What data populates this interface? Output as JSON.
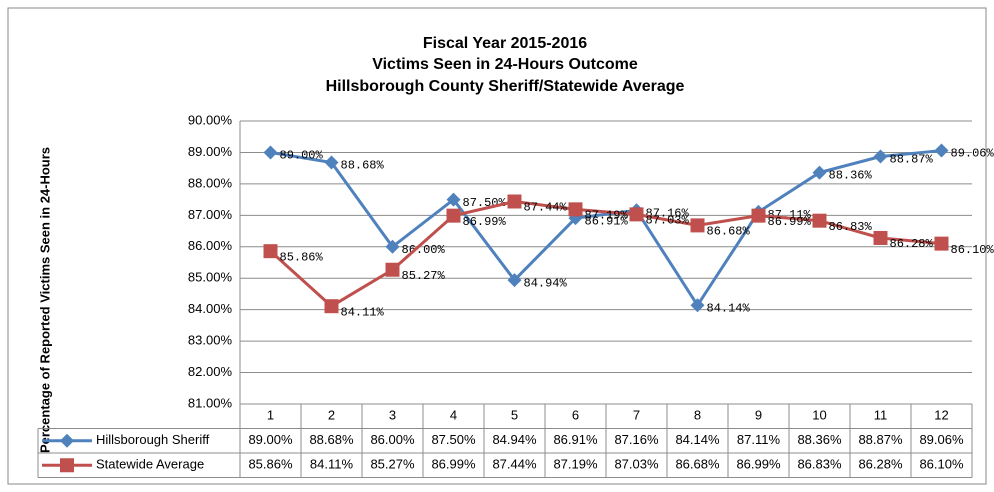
{
  "chart_data": {
    "type": "line",
    "title": [
      "Fiscal Year 2015-2016",
      "Victims Seen in 24-Hours Outcome",
      "Hillsborough County Sheriff/Statewide Average"
    ],
    "y_label": "Percentage of Reported Victims Seen in 24-Hours",
    "categories": [
      "1",
      "2",
      "3",
      "4",
      "5",
      "6",
      "7",
      "8",
      "9",
      "10",
      "11",
      "12"
    ],
    "series": [
      {
        "name": "Hillsborough Sheriff",
        "color": "#4f81bd",
        "marker": "diamond",
        "values": [
          89.0,
          88.68,
          86.0,
          87.5,
          84.94,
          86.91,
          87.16,
          84.14,
          87.11,
          88.36,
          88.87,
          89.06
        ],
        "value_labels": [
          "89.00%",
          "88.68%",
          "86.00%",
          "87.50%",
          "84.94%",
          "86.91%",
          "87.16%",
          "84.14%",
          "87.11%",
          "88.36%",
          "88.87%",
          "89.06%"
        ]
      },
      {
        "name": "Statewide Average",
        "color": "#c0504d",
        "marker": "square",
        "values": [
          85.86,
          84.11,
          85.27,
          86.99,
          87.44,
          87.19,
          87.03,
          86.68,
          86.99,
          86.83,
          86.28,
          86.1
        ],
        "value_labels": [
          "85.86%",
          "84.11%",
          "85.27%",
          "86.99%",
          "87.44%",
          "87.19%",
          "87.03%",
          "86.68%",
          "86.99%",
          "86.83%",
          "86.28%",
          "86.10%"
        ]
      }
    ],
    "ylim": [
      81,
      90
    ],
    "yticks": [
      {
        "value": 81,
        "label": "81.00%"
      },
      {
        "value": 82,
        "label": "82.00%"
      },
      {
        "value": 83,
        "label": "83.00%"
      },
      {
        "value": 84,
        "label": "84.00%"
      },
      {
        "value": 85,
        "label": "85.00%"
      },
      {
        "value": 86,
        "label": "86.00%"
      },
      {
        "value": 87,
        "label": "87.00%"
      },
      {
        "value": 88,
        "label": "88.00%"
      },
      {
        "value": 89,
        "label": "89.00%"
      },
      {
        "value": 90,
        "label": "90.00%"
      }
    ],
    "grid": true
  }
}
